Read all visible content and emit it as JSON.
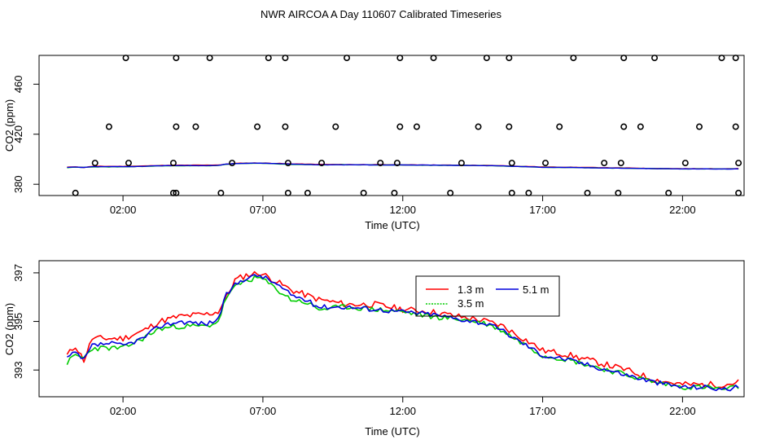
{
  "chart_data": [
    {
      "type": "scatter",
      "title": "NWR AIRCOA A  Day 110607  Calibrated Timeseries",
      "xlabel": "Time (UTC)",
      "ylabel": "CO2 (ppm)",
      "xlim": [
        -1.0,
        24.2
      ],
      "ylim": [
        371,
        483
      ],
      "x_ticks": [
        {
          "v": 2,
          "label": "02:00"
        },
        {
          "v": 7,
          "label": "07:00"
        },
        {
          "v": 12,
          "label": "12:00"
        },
        {
          "v": 17,
          "label": "17:00"
        },
        {
          "v": 22,
          "label": "22:00"
        }
      ],
      "y_ticks": [
        {
          "v": 380,
          "label": "380"
        },
        {
          "v": 420,
          "label": "420"
        },
        {
          "v": 460,
          "label": "460"
        }
      ],
      "points": [
        [
          0.3,
          373
        ],
        [
          3.9,
          373
        ],
        [
          5.5,
          373
        ],
        [
          3.8,
          373
        ],
        [
          7.9,
          373
        ],
        [
          8.6,
          373
        ],
        [
          10.6,
          373
        ],
        [
          11.7,
          373
        ],
        [
          13.7,
          373
        ],
        [
          15.9,
          373
        ],
        [
          16.5,
          373
        ],
        [
          18.6,
          373
        ],
        [
          19.7,
          373
        ],
        [
          21.5,
          373
        ],
        [
          24.0,
          373
        ],
        [
          1.0,
          397
        ],
        [
          2.2,
          397
        ],
        [
          3.8,
          397
        ],
        [
          5.9,
          397
        ],
        [
          7.9,
          397
        ],
        [
          9.1,
          397
        ],
        [
          11.2,
          397
        ],
        [
          11.8,
          397
        ],
        [
          14.1,
          397
        ],
        [
          15.9,
          397
        ],
        [
          17.1,
          397
        ],
        [
          19.2,
          397
        ],
        [
          19.8,
          397
        ],
        [
          22.1,
          397
        ],
        [
          24.0,
          397
        ],
        [
          1.5,
          426
        ],
        [
          3.9,
          426
        ],
        [
          4.6,
          426
        ],
        [
          6.8,
          426
        ],
        [
          7.8,
          426
        ],
        [
          9.6,
          426
        ],
        [
          11.9,
          426
        ],
        [
          12.5,
          426
        ],
        [
          14.7,
          426
        ],
        [
          15.8,
          426
        ],
        [
          17.6,
          426
        ],
        [
          19.9,
          426
        ],
        [
          20.5,
          426
        ],
        [
          22.6,
          426
        ],
        [
          23.9,
          426
        ],
        [
          2.1,
          481
        ],
        [
          3.9,
          481
        ],
        [
          5.1,
          481
        ],
        [
          7.2,
          481
        ],
        [
          7.8,
          481
        ],
        [
          10.0,
          481
        ],
        [
          11.9,
          481
        ],
        [
          13.1,
          481
        ],
        [
          15.0,
          481
        ],
        [
          15.8,
          481
        ],
        [
          18.1,
          481
        ],
        [
          19.9,
          481
        ],
        [
          21.0,
          481
        ],
        [
          23.4,
          481
        ],
        [
          23.9,
          481
        ]
      ],
      "series_note": "Lines inside the top panel reuse the 1.3 m, 3.5 m and 5.1 m series from the lower panel."
    },
    {
      "type": "line",
      "title": "",
      "xlabel": "Time (UTC)",
      "ylabel": "CO2 (ppm)",
      "xlim": [
        -1.0,
        24.2
      ],
      "ylim": [
        391.9,
        397.5
      ],
      "x_ticks": [
        {
          "v": 2,
          "label": "02:00"
        },
        {
          "v": 7,
          "label": "07:00"
        },
        {
          "v": 12,
          "label": "12:00"
        },
        {
          "v": 17,
          "label": "17:00"
        },
        {
          "v": 22,
          "label": "22:00"
        }
      ],
      "y_ticks": [
        {
          "v": 393,
          "label": "393"
        },
        {
          "v": 395,
          "label": "395"
        },
        {
          "v": 397,
          "label": "397"
        }
      ],
      "legend": "top-right",
      "series": [
        {
          "name": "1.3 m",
          "color": "#ff0000",
          "noise": 0.13,
          "seed": 11,
          "points": [
            [
              0,
              393.6
            ],
            [
              0.3,
              394.0
            ],
            [
              0.6,
              393.4
            ],
            [
              0.9,
              394.3
            ],
            [
              1.5,
              394.3
            ],
            [
              2.0,
              394.3
            ],
            [
              2.7,
              394.6
            ],
            [
              3.3,
              395.0
            ],
            [
              4.0,
              395.2
            ],
            [
              5.0,
              395.3
            ],
            [
              5.4,
              395.4
            ],
            [
              5.7,
              396.0
            ],
            [
              6.0,
              396.7
            ],
            [
              6.4,
              396.9
            ],
            [
              6.9,
              397.0
            ],
            [
              7.4,
              396.7
            ],
            [
              8.0,
              396.3
            ],
            [
              8.5,
              396.1
            ],
            [
              9.0,
              395.9
            ],
            [
              10.0,
              395.7
            ],
            [
              11.0,
              395.7
            ],
            [
              12.0,
              395.5
            ],
            [
              13.0,
              395.4
            ],
            [
              14.0,
              395.2
            ],
            [
              14.6,
              395.1
            ],
            [
              15.0,
              395.0
            ],
            [
              15.6,
              394.8
            ],
            [
              16.0,
              394.5
            ],
            [
              16.6,
              394.1
            ],
            [
              17.0,
              393.8
            ],
            [
              17.6,
              393.7
            ],
            [
              18.0,
              393.6
            ],
            [
              19.0,
              393.3
            ],
            [
              20.0,
              393.0
            ],
            [
              21.0,
              392.6
            ],
            [
              22.0,
              392.4
            ],
            [
              22.8,
              392.4
            ],
            [
              23.5,
              392.4
            ],
            [
              24.0,
              392.5
            ]
          ]
        },
        {
          "name": "3.5 m",
          "color": "#00cc00",
          "noise": 0.11,
          "seed": 23,
          "points": [
            [
              0,
              393.3
            ],
            [
              0.3,
              393.6
            ],
            [
              0.6,
              393.5
            ],
            [
              0.9,
              393.9
            ],
            [
              1.5,
              393.9
            ],
            [
              2.0,
              393.9
            ],
            [
              2.7,
              394.3
            ],
            [
              3.3,
              394.7
            ],
            [
              4.0,
              394.8
            ],
            [
              5.0,
              394.8
            ],
            [
              5.4,
              395.0
            ],
            [
              5.7,
              396.0
            ],
            [
              6.0,
              396.4
            ],
            [
              6.4,
              396.7
            ],
            [
              6.9,
              396.8
            ],
            [
              7.4,
              396.4
            ],
            [
              8.0,
              395.9
            ],
            [
              8.5,
              395.8
            ],
            [
              9.0,
              395.5
            ],
            [
              10.0,
              395.6
            ],
            [
              11.0,
              395.5
            ],
            [
              12.0,
              395.4
            ],
            [
              13.0,
              395.2
            ],
            [
              14.0,
              395.1
            ],
            [
              14.6,
              395.0
            ],
            [
              15.0,
              394.9
            ],
            [
              15.6,
              394.6
            ],
            [
              16.0,
              394.3
            ],
            [
              16.6,
              393.9
            ],
            [
              17.0,
              393.6
            ],
            [
              17.6,
              393.5
            ],
            [
              18.0,
              393.4
            ],
            [
              19.0,
              393.1
            ],
            [
              20.0,
              392.8
            ],
            [
              21.0,
              392.5
            ],
            [
              22.0,
              392.3
            ],
            [
              22.8,
              392.3
            ],
            [
              23.5,
              392.2
            ],
            [
              24.0,
              392.3
            ]
          ]
        },
        {
          "name": "5.1 m",
          "color": "#0000dd",
          "noise": 0.1,
          "seed": 37,
          "points": [
            [
              0,
              393.5
            ],
            [
              0.3,
              393.7
            ],
            [
              0.6,
              393.4
            ],
            [
              0.9,
              394.0
            ],
            [
              1.5,
              394.1
            ],
            [
              2.0,
              394.0
            ],
            [
              2.7,
              394.3
            ],
            [
              3.3,
              394.8
            ],
            [
              4.0,
              395.0
            ],
            [
              5.0,
              394.9
            ],
            [
              5.4,
              395.1
            ],
            [
              5.7,
              396.1
            ],
            [
              6.0,
              396.5
            ],
            [
              6.4,
              396.8
            ],
            [
              6.9,
              396.9
            ],
            [
              7.4,
              396.6
            ],
            [
              8.0,
              396.1
            ],
            [
              8.5,
              395.9
            ],
            [
              9.0,
              395.6
            ],
            [
              10.0,
              395.6
            ],
            [
              11.0,
              395.5
            ],
            [
              12.0,
              395.4
            ],
            [
              13.0,
              395.3
            ],
            [
              14.0,
              395.1
            ],
            [
              14.6,
              395.0
            ],
            [
              15.0,
              394.9
            ],
            [
              15.6,
              394.6
            ],
            [
              16.0,
              394.3
            ],
            [
              16.6,
              393.9
            ],
            [
              17.0,
              393.6
            ],
            [
              17.6,
              393.5
            ],
            [
              18.0,
              393.4
            ],
            [
              19.0,
              393.1
            ],
            [
              20.0,
              392.8
            ],
            [
              21.0,
              392.5
            ],
            [
              22.0,
              392.3
            ],
            [
              22.8,
              392.3
            ],
            [
              23.5,
              392.2
            ],
            [
              24.0,
              392.3
            ]
          ]
        }
      ]
    }
  ]
}
